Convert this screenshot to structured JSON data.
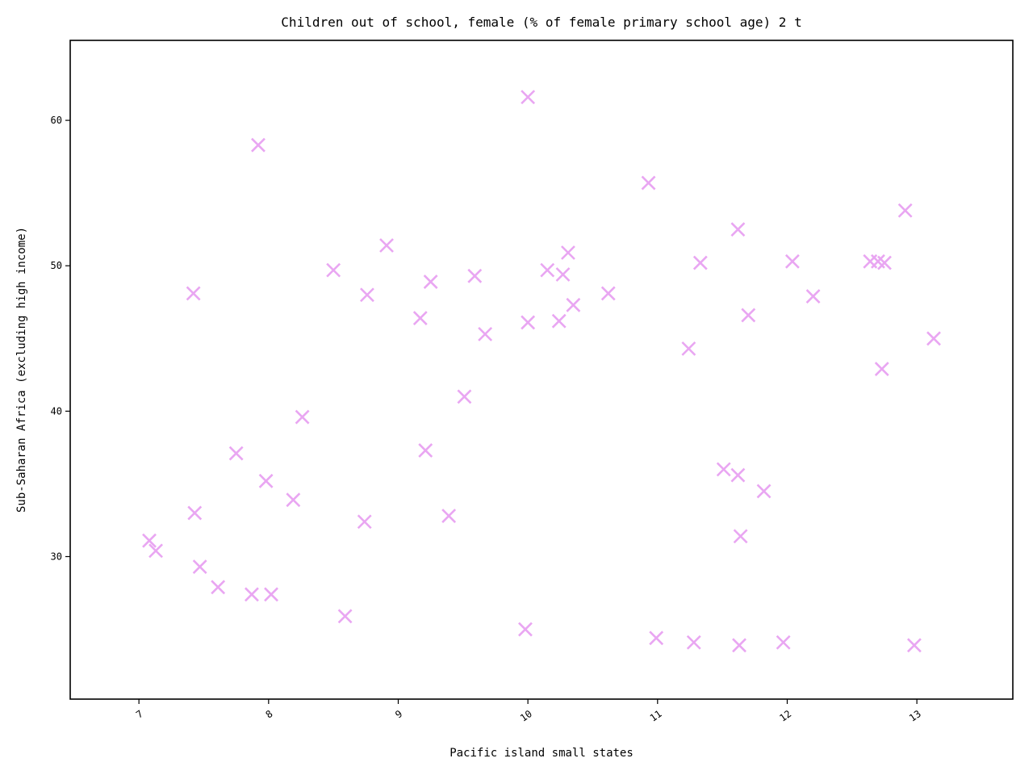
{
  "colors": {
    "marker": "#e9a6f2",
    "axis": "#000000",
    "background": "#ffffff"
  },
  "chart_data": {
    "type": "scatter",
    "title": "Children out of school, female (% of female primary school age) 2 t",
    "xlabel": "Pacific island small states",
    "ylabel": "Sub-Saharan Africa (excluding high income)",
    "xlim": [
      6.47,
      13.74
    ],
    "ylim": [
      20.2,
      65.5
    ],
    "xticks": [
      7,
      8,
      9,
      10,
      11,
      12,
      13
    ],
    "yticks": [
      30,
      40,
      50,
      60
    ],
    "grid": false,
    "marker": "x",
    "series": [
      {
        "points": [
          [
            7.08,
            31.1
          ],
          [
            7.13,
            30.4
          ],
          [
            7.42,
            48.1
          ],
          [
            7.43,
            33.0
          ],
          [
            7.47,
            29.3
          ],
          [
            7.61,
            27.9
          ],
          [
            7.75,
            37.1
          ],
          [
            7.87,
            27.4
          ],
          [
            7.92,
            58.3
          ],
          [
            7.98,
            35.2
          ],
          [
            8.02,
            27.4
          ],
          [
            8.19,
            33.9
          ],
          [
            8.26,
            39.6
          ],
          [
            8.5,
            49.7
          ],
          [
            8.59,
            25.9
          ],
          [
            8.74,
            32.4
          ],
          [
            8.76,
            48.0
          ],
          [
            8.91,
            51.4
          ],
          [
            9.17,
            46.4
          ],
          [
            9.21,
            37.3
          ],
          [
            9.25,
            48.9
          ],
          [
            9.39,
            32.8
          ],
          [
            9.51,
            41.0
          ],
          [
            9.59,
            49.3
          ],
          [
            9.67,
            45.3
          ],
          [
            9.98,
            25.0
          ],
          [
            10.0,
            46.1
          ],
          [
            10.0,
            61.6
          ],
          [
            10.15,
            49.7
          ],
          [
            10.24,
            46.2
          ],
          [
            10.27,
            49.4
          ],
          [
            10.31,
            50.9
          ],
          [
            10.35,
            47.3
          ],
          [
            10.62,
            48.1
          ],
          [
            10.93,
            55.7
          ],
          [
            10.99,
            24.4
          ],
          [
            11.24,
            44.3
          ],
          [
            11.28,
            24.1
          ],
          [
            11.33,
            50.2
          ],
          [
            11.51,
            36.0
          ],
          [
            11.62,
            52.5
          ],
          [
            11.62,
            35.6
          ],
          [
            11.63,
            23.9
          ],
          [
            11.64,
            31.4
          ],
          [
            11.7,
            46.6
          ],
          [
            11.82,
            34.5
          ],
          [
            11.97,
            24.1
          ],
          [
            12.04,
            50.3
          ],
          [
            12.2,
            47.9
          ],
          [
            12.64,
            50.3
          ],
          [
            12.7,
            50.3
          ],
          [
            12.73,
            42.9
          ],
          [
            12.75,
            50.2
          ],
          [
            12.91,
            53.8
          ],
          [
            12.98,
            23.9
          ],
          [
            13.13,
            45.0
          ]
        ]
      }
    ]
  }
}
